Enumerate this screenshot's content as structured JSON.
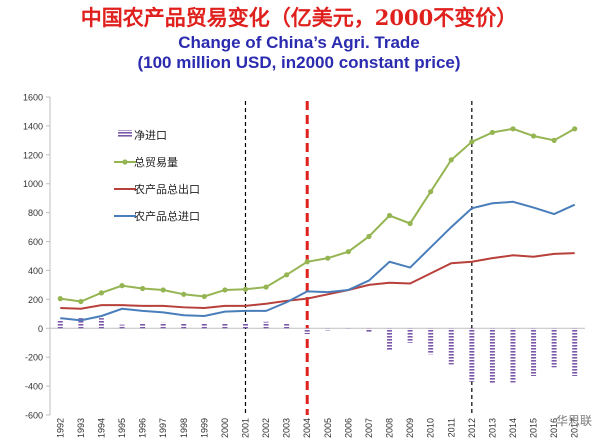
{
  "title_cn": "中国农产品贸易变化（亿美元，2000不变价）",
  "title_en_line1": "Change of China’s Agri. Trade",
  "title_en_line2": "(100 million USD, in2000 constant price)",
  "watermark": "华思联",
  "colors": {
    "net_import_bar": "#7b59a8",
    "total_trade_line": "#95b552",
    "export_line": "#b8403a",
    "import_line": "#4a7ebb",
    "marker_red": "#e0201c",
    "marker_black": "#000000"
  },
  "chart_data": {
    "type": "line",
    "x": [
      "1992",
      "1993",
      "1994",
      "1995",
      "1996",
      "1997",
      "1998",
      "1999",
      "2000",
      "2001",
      "2002",
      "2003",
      "2004",
      "2005",
      "2006",
      "2007",
      "2008",
      "2009",
      "2010",
      "2011",
      "2012",
      "2013",
      "2014",
      "2015",
      "2016",
      "2017"
    ],
    "ylim": [
      -600,
      1600
    ],
    "yticks": [
      -600,
      -400,
      -200,
      0,
      200,
      400,
      600,
      800,
      1000,
      1200,
      1400,
      1600
    ],
    "grid": false,
    "legend": "top-left",
    "vertical_markers": [
      {
        "x": "2001",
        "style": "black-dashed"
      },
      {
        "x": "2004",
        "style": "red-dashed-thick"
      },
      {
        "x": "2012",
        "style": "black-dashed"
      }
    ],
    "series": [
      {
        "name": "净进口",
        "kind": "bar",
        "values": [
          60,
          70,
          70,
          25,
          30,
          40,
          35,
          30,
          35,
          35,
          45,
          30,
          -40,
          -15,
          -10,
          -30,
          -150,
          -100,
          -180,
          -250,
          -370,
          -380,
          -375,
          -330,
          -270,
          -330
        ]
      },
      {
        "name": "总贸易量",
        "kind": "line",
        "marker": "circle",
        "values": [
          205,
          185,
          245,
          295,
          275,
          265,
          235,
          220,
          265,
          270,
          285,
          370,
          460,
          485,
          530,
          635,
          780,
          725,
          945,
          1165,
          1290,
          1355,
          1380,
          1330,
          1300,
          1380
        ]
      },
      {
        "name": "农产品总出口",
        "kind": "line",
        "values": [
          140,
          135,
          160,
          160,
          155,
          155,
          145,
          140,
          155,
          155,
          170,
          190,
          205,
          235,
          265,
          300,
          315,
          310,
          380,
          450,
          460,
          485,
          505,
          495,
          515,
          520
        ]
      },
      {
        "name": "农产品总进口",
        "kind": "line",
        "values": [
          70,
          55,
          85,
          135,
          120,
          110,
          90,
          85,
          115,
          120,
          120,
          180,
          255,
          250,
          265,
          330,
          460,
          420,
          560,
          700,
          830,
          865,
          875,
          835,
          790,
          855
        ]
      }
    ]
  }
}
